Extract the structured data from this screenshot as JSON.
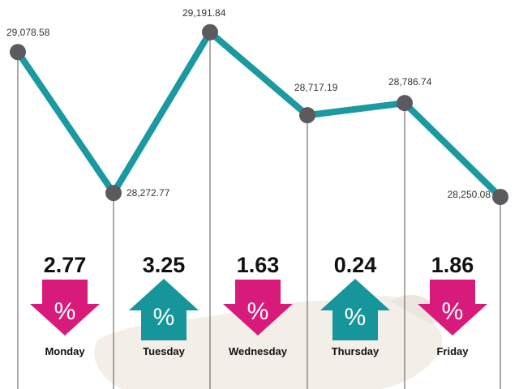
{
  "chart_data": {
    "type": "line",
    "categories": [
      "Monday",
      "Tuesday",
      "Wednesday",
      "Thursday",
      "Friday"
    ],
    "points": [
      {
        "label": "29,078.58",
        "value": 29078.58
      },
      {
        "label": "28,272.77",
        "value": 28272.77
      },
      {
        "label": "29,191.84",
        "value": 29191.84
      },
      {
        "label": "28,717.19",
        "value": 28717.19
      },
      {
        "label": "28,786.74",
        "value": 28786.74
      },
      {
        "label": "28,250.08",
        "value": 28250.08
      }
    ],
    "ylim": [
      28250,
      29200
    ],
    "daily_changes": [
      {
        "day": "Monday",
        "percent": "2.77",
        "direction": "down"
      },
      {
        "day": "Tuesday",
        "percent": "3.25",
        "direction": "up"
      },
      {
        "day": "Wednesday",
        "percent": "1.63",
        "direction": "down"
      },
      {
        "day": "Thursday",
        "percent": "0.24",
        "direction": "up"
      },
      {
        "day": "Friday",
        "percent": "1.86",
        "direction": "down"
      }
    ],
    "percent_symbol": "%",
    "colors": {
      "line": "#1a9aa0",
      "marker": "#5a5a5f",
      "down_arrow": "#d81b7b",
      "up_arrow": "#16959a",
      "gridline": "#555555"
    }
  }
}
